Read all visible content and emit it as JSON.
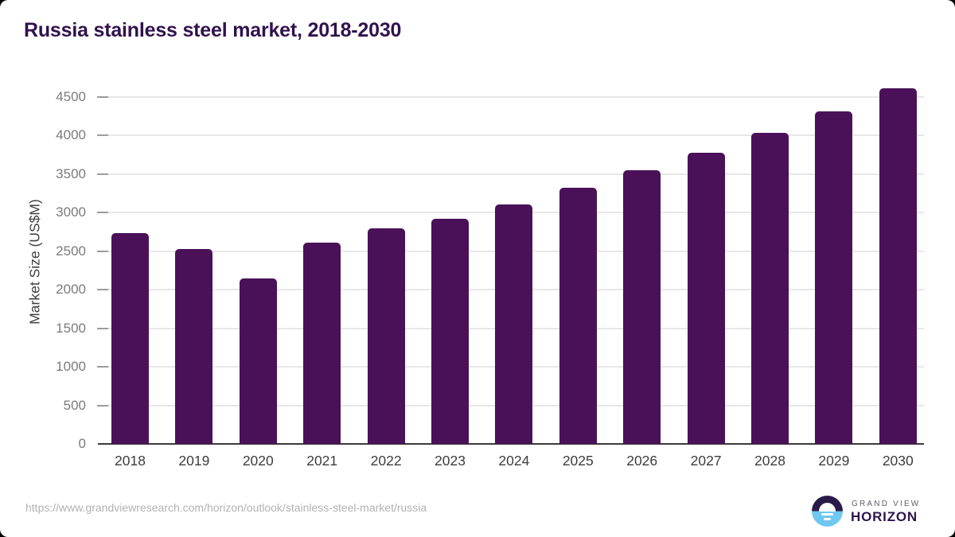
{
  "page": {
    "title": "Russia stainless steel market, 2018-2030",
    "source_url": "https://www.grandviewresearch.com/horizon/outlook/stainless-steel-market/russia"
  },
  "logo": {
    "brand": "GRAND VIEW",
    "product": "HORIZON",
    "icon": "sunset-over-water-circle-icon"
  },
  "colors": {
    "bar": "#4a1158",
    "title": "#31124d",
    "axis_line": "#3b3b3b",
    "gridline": "#e7e7e7",
    "tick_mark": "#9c9c9c",
    "ytick_text": "#7b7b7b",
    "xtick_text": "#3d3d3d",
    "logo_dark": "#2a1a4a",
    "logo_blue": "#70c8f0"
  },
  "chart_data": {
    "type": "bar",
    "title": "Russia stainless steel market, 2018-2030",
    "categories": [
      "2018",
      "2019",
      "2020",
      "2021",
      "2022",
      "2023",
      "2024",
      "2025",
      "2026",
      "2027",
      "2028",
      "2029",
      "2030"
    ],
    "values": [
      2730,
      2530,
      2150,
      2610,
      2800,
      2920,
      3110,
      3320,
      3550,
      3780,
      4040,
      4310,
      4610
    ],
    "xlabel": "",
    "ylabel": "Market Size (US$M)",
    "ylim": [
      0,
      4730
    ],
    "yticks": [
      0,
      500,
      1000,
      1500,
      2000,
      2500,
      3000,
      3500,
      4000,
      4500
    ],
    "grid": true,
    "legend": false,
    "bar_color": "#4a1158"
  }
}
